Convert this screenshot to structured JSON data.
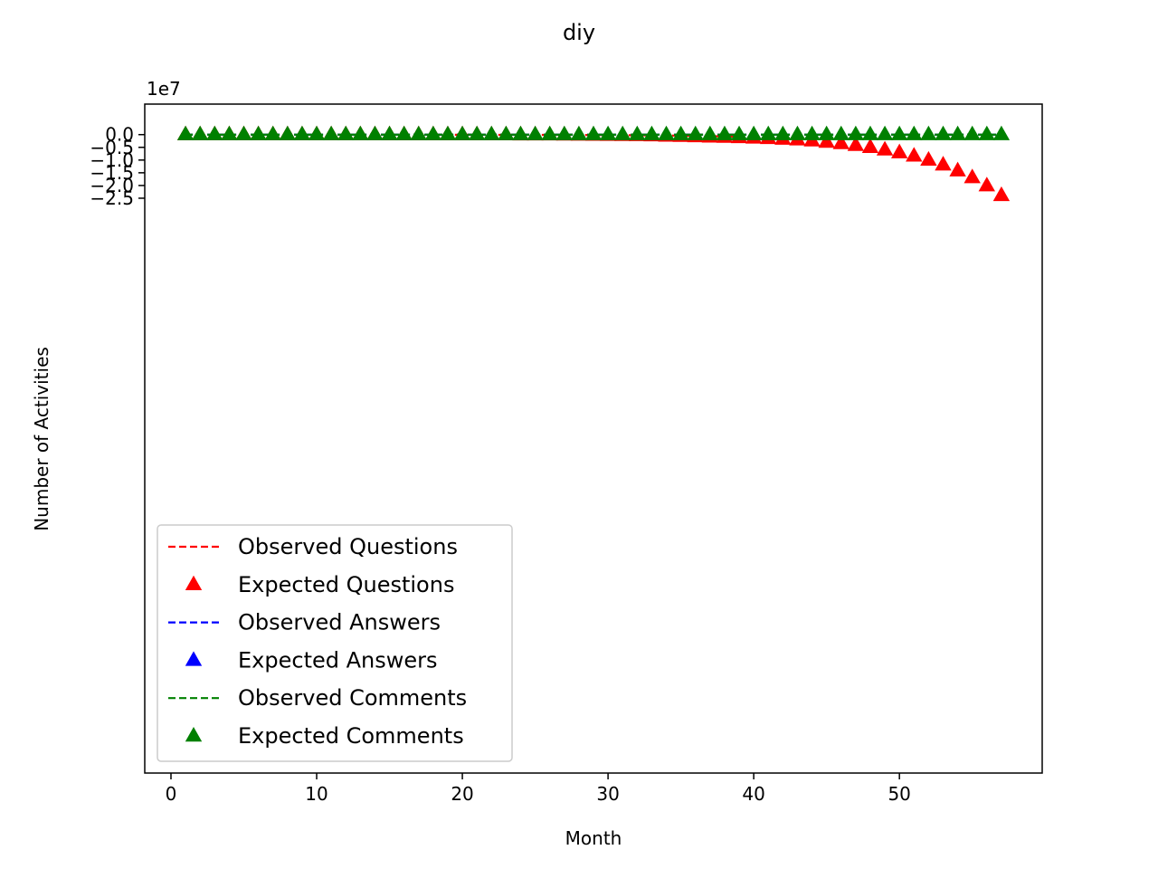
{
  "chart_data": {
    "type": "line",
    "title": "diy",
    "xlabel": "Month",
    "ylabel": "Number of Activities",
    "y_offset_label": "1e7",
    "y_scale": 10000000,
    "xlim": [
      -1.8,
      59.8
    ],
    "ylim": [
      -25.1,
      1.2
    ],
    "x_ticks": [
      0,
      10,
      20,
      30,
      40,
      50
    ],
    "x_tick_labels": [
      "0",
      "10",
      "20",
      "30",
      "40",
      "50"
    ],
    "y_ticks": [
      0,
      -5000000,
      -10000000,
      -15000000,
      -20000000,
      -25000000
    ],
    "y_tick_labels": [
      "0.0",
      "−0.5",
      "−1.0",
      "−1.5",
      "−2.0",
      "−2.5"
    ],
    "grid": false,
    "legend_position": "lower left",
    "series": [
      {
        "name": "Observed Questions",
        "style": "dashed-line",
        "color": "#ff0000",
        "x": [
          18,
          19,
          20,
          21,
          22,
          23,
          24,
          25,
          26,
          27,
          28,
          29,
          30,
          31,
          32,
          33,
          34,
          35,
          36,
          37,
          38,
          39,
          40
        ],
        "y": [
          -50000,
          -55000,
          -60000,
          -65000,
          -72000,
          -80000,
          -90000,
          -100000,
          -110000,
          -125000,
          -140000,
          -160000,
          -180000,
          -210000,
          -240000,
          -280000,
          -330000,
          -400000,
          -480000,
          -580000,
          -700000,
          -850000,
          -1000000
        ]
      },
      {
        "name": "Expected Questions",
        "style": "triangle-marker",
        "color": "#ff0000",
        "x": [
          1,
          2,
          3,
          4,
          5,
          6,
          7,
          8,
          9,
          10,
          11,
          12,
          13,
          14,
          15,
          16,
          17,
          18,
          19,
          20,
          21,
          22,
          23,
          24,
          25,
          26,
          27,
          28,
          29,
          30,
          31,
          32,
          33,
          34,
          35,
          36,
          37,
          38,
          39,
          40,
          41,
          42,
          43,
          44,
          45,
          46,
          47,
          48,
          49,
          50,
          51,
          52,
          53,
          54,
          55,
          56,
          57
        ],
        "y": [
          -1000,
          -1000,
          -1000,
          -1000,
          -1000,
          -1000,
          -1000,
          -2000,
          -2000,
          -2000,
          -3000,
          -4000,
          -5000,
          -6000,
          -8000,
          -10000,
          -12000,
          -15000,
          -19000,
          -24000,
          -30000,
          -38000,
          -48000,
          -60000,
          -75000,
          -94000,
          -118000,
          -148000,
          -185000,
          -231000,
          -288000,
          -360000,
          -450000,
          -560000,
          -650000,
          -780000,
          -900000,
          -1000000,
          -1150000,
          -1300000,
          -1500000,
          -1750000,
          -2050000,
          -2450000,
          -2950000,
          -3500000,
          -4200000,
          -5000000,
          -6000000,
          -7100000,
          -8400000,
          -10000000,
          -11900000,
          -14200000,
          -16900000,
          -20100000,
          -23900000
        ]
      },
      {
        "name": "Observed Answers",
        "style": "dashed-line",
        "color": "#0000ff",
        "x": [
          1,
          57
        ],
        "y": [
          0,
          0
        ]
      },
      {
        "name": "Expected Answers",
        "style": "triangle-marker",
        "color": "#0000ff",
        "x": [],
        "y": []
      },
      {
        "name": "Observed Comments",
        "style": "dashed-line",
        "color": "#008000",
        "x": [
          1,
          57
        ],
        "y": [
          0,
          0
        ]
      },
      {
        "name": "Expected Comments",
        "style": "triangle-marker",
        "color": "#008000",
        "x": [
          1,
          2,
          3,
          4,
          5,
          6,
          7,
          8,
          9,
          10,
          11,
          12,
          13,
          14,
          15,
          16,
          17,
          18,
          19,
          20,
          21,
          22,
          23,
          24,
          25,
          26,
          27,
          28,
          29,
          30,
          31,
          32,
          33,
          34,
          35,
          36,
          37,
          38,
          39,
          40,
          41,
          42,
          43,
          44,
          45,
          46,
          47,
          48,
          49,
          50,
          51,
          52,
          53,
          54,
          55,
          56,
          57
        ],
        "y": [
          0,
          0,
          0,
          0,
          0,
          0,
          0,
          0,
          0,
          0,
          0,
          0,
          0,
          0,
          0,
          0,
          0,
          0,
          0,
          0,
          0,
          0,
          0,
          0,
          0,
          0,
          0,
          0,
          0,
          0,
          0,
          0,
          0,
          0,
          0,
          0,
          0,
          0,
          0,
          0,
          0,
          0,
          0,
          0,
          0,
          0,
          0,
          0,
          0,
          0,
          0,
          0,
          0,
          0,
          0,
          0,
          0
        ]
      }
    ]
  }
}
